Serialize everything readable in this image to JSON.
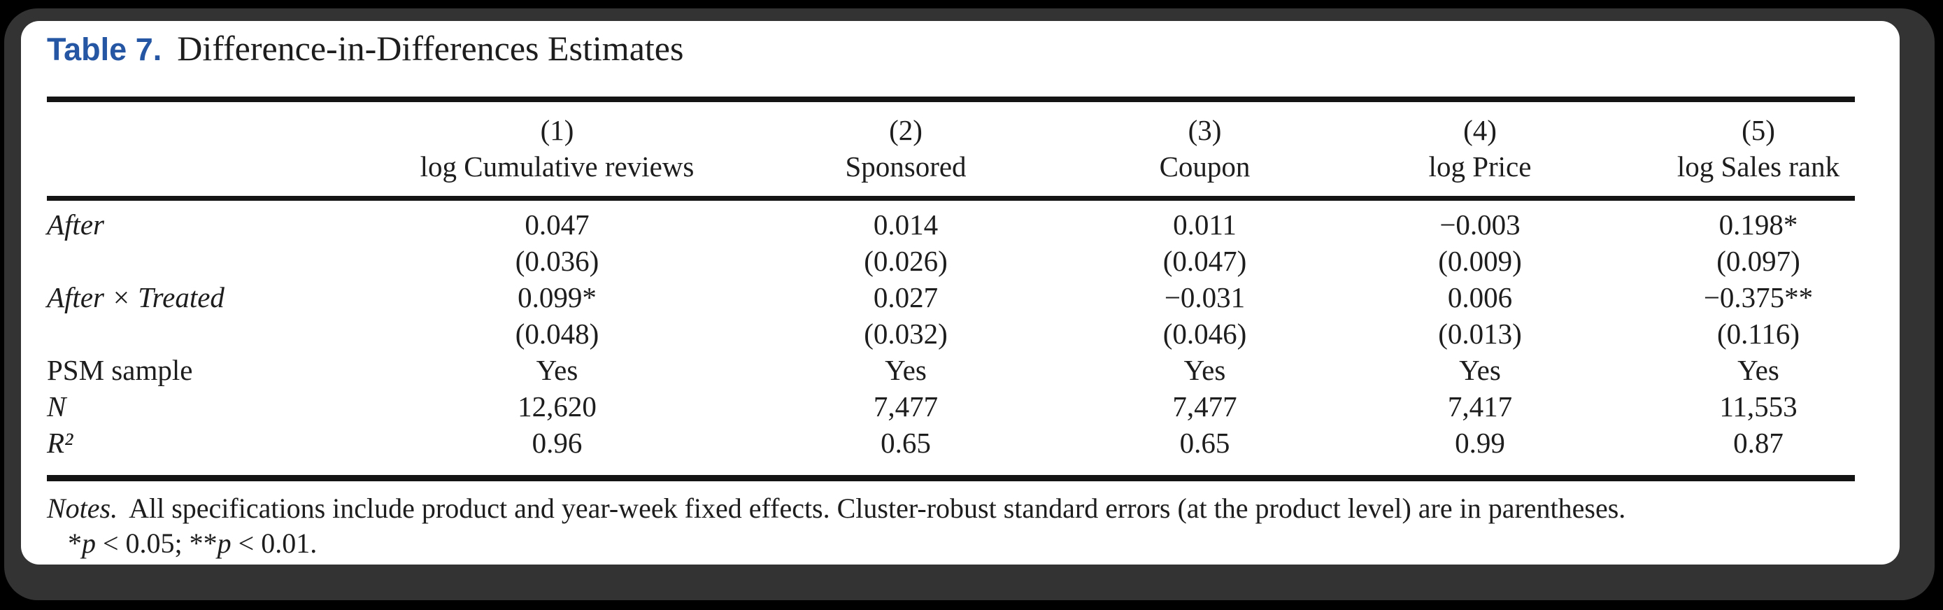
{
  "theme": {
    "bg": "#000000",
    "frame": "#333333",
    "panel": "#ffffff",
    "text": "#1d1d1d",
    "rule": "#141414",
    "accent": "#2456a4"
  },
  "title": {
    "label": "Table 7.",
    "text": "Difference-in-Differences Estimates"
  },
  "table": {
    "column_numbers": [
      "(1)",
      "(2)",
      "(3)",
      "(4)",
      "(5)"
    ],
    "column_names": [
      "log Cumulative reviews",
      "Sponsored",
      "Coupon",
      "log Price",
      "log Sales rank"
    ],
    "rows": [
      {
        "label": "After",
        "cells": [
          "0.047",
          "0.014",
          "0.011",
          "−0.003",
          "0.198*"
        ]
      },
      {
        "label": "",
        "cells": [
          "(0.036)",
          "(0.026)",
          "(0.047)",
          "(0.009)",
          "(0.097)"
        ]
      },
      {
        "label": "After × Treated",
        "cells": [
          "0.099*",
          "0.027",
          "−0.031",
          "0.006",
          "−0.375**"
        ]
      },
      {
        "label": "",
        "cells": [
          "(0.048)",
          "(0.032)",
          "(0.046)",
          "(0.013)",
          "(0.116)"
        ]
      },
      {
        "label": "PSM sample",
        "cells": [
          "Yes",
          "Yes",
          "Yes",
          "Yes",
          "Yes"
        ]
      },
      {
        "label": "N",
        "cells": [
          "12,620",
          "7,477",
          "7,477",
          "7,417",
          "11,553"
        ]
      },
      {
        "label": "R²",
        "cells": [
          "0.96",
          "0.65",
          "0.65",
          "0.99",
          "0.87"
        ]
      }
    ]
  },
  "notes": {
    "label": "Notes.",
    "text": "All specifications include product and year-week fixed effects. Cluster-robust standard errors (at the product level) are in parentheses.",
    "significance_parts": [
      "*",
      "p",
      " < 0.05; ",
      "**",
      "p",
      " < 0.01."
    ]
  }
}
